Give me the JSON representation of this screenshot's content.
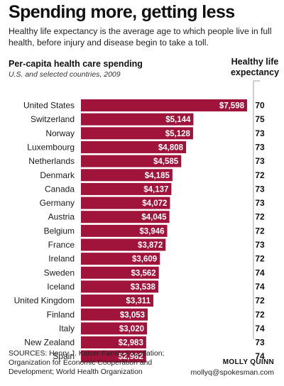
{
  "headline": "Spending more, getting less",
  "intro": "Healthy life expectancy is the average age to which people live in full health, before injury and disease begin to take a toll.",
  "colors": {
    "bar": "#a0143c",
    "bar_label": "#ffffff",
    "text": "#1a1a1a"
  },
  "chart_data": {
    "type": "bar",
    "orientation": "horizontal",
    "title": "Per-capita health care spending",
    "subtitle": "U.S. and selected countries, 2009",
    "extra_column_header": "Healthy life expectancy",
    "categories": [
      "United States",
      "Switzerland",
      "Norway",
      "Luxembourg",
      "Netherlands",
      "Denmark",
      "Canada",
      "Germany",
      "Austria",
      "Belgium",
      "France",
      "Ireland",
      "Sweden",
      "Iceland",
      "United Kingdom",
      "Finland",
      "Italy",
      "New Zealand",
      "Spain"
    ],
    "values": [
      7598,
      5144,
      5128,
      4808,
      4585,
      4185,
      4137,
      4072,
      4045,
      3946,
      3872,
      3609,
      3562,
      3538,
      3311,
      3053,
      3020,
      2983,
      2982
    ],
    "value_labels": [
      "$7,598",
      "$5,144",
      "$5,128",
      "$4,808",
      "$4,585",
      "$4,185",
      "$4,137",
      "$4,072",
      "$4,045",
      "$3,946",
      "$3,872",
      "$3,609",
      "$3,562",
      "$3,538",
      "$3,311",
      "$3,053",
      "$3,020",
      "$2,983",
      "$2,982"
    ],
    "healthy_life_expectancy": [
      70,
      75,
      73,
      73,
      73,
      72,
      73,
      73,
      72,
      72,
      73,
      72,
      74,
      74,
      72,
      72,
      74,
      73,
      74
    ],
    "xlim": [
      0,
      7598
    ]
  },
  "sources": "SOURCES: Henry J. Kaiser Family Foundation; Organization for Economic Cooperation and Development; World Health Organization",
  "byline": {
    "name": "MOLLY QUINN",
    "email": "mollyq@spokesman.com"
  }
}
